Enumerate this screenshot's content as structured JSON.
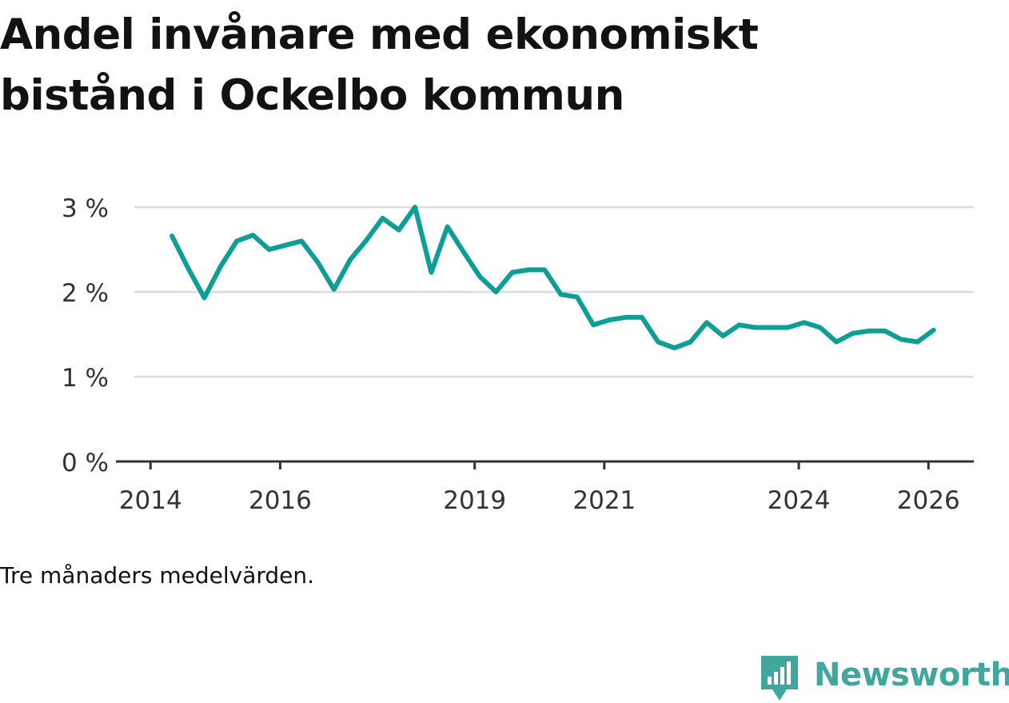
{
  "title": {
    "line1": "Andel invånare med ekonomiskt",
    "line2": "bistånd i Ockelbo kommun"
  },
  "footnote": "Tre månaders medelvärden.",
  "brand": {
    "name": "Newsworthy",
    "logo_icon": "bar-chart-bubble-icon",
    "color": "#3fa79d"
  },
  "colors": {
    "line": "#0d9f95",
    "grid": "#dddddd",
    "axis": "#333333",
    "text": "#121212"
  },
  "chart_data": {
    "type": "line",
    "title": "Andel invånare med ekonomiskt bistånd i Ockelbo kommun",
    "xlabel": "",
    "ylabel": "",
    "ylim": [
      0,
      3
    ],
    "xlim": [
      2013.75,
      2026.7
    ],
    "y_ticks": [
      {
        "value": 0,
        "label": "0 %"
      },
      {
        "value": 1,
        "label": "1 %"
      },
      {
        "value": 2,
        "label": "2 %"
      },
      {
        "value": 3,
        "label": "3 %"
      }
    ],
    "x_ticks": [
      {
        "value": 2014,
        "label": "2014"
      },
      {
        "value": 2016,
        "label": "2016"
      },
      {
        "value": 2019,
        "label": "2019"
      },
      {
        "value": 2021,
        "label": "2021"
      },
      {
        "value": 2024,
        "label": "2024"
      },
      {
        "value": 2026,
        "label": "2026"
      }
    ],
    "grid": true,
    "series": [
      {
        "name": "Andel invånare med ekonomiskt bistånd",
        "x": [
          2014.33,
          2014.58,
          2014.83,
          2015.08,
          2015.33,
          2015.58,
          2015.83,
          2016.08,
          2016.33,
          2016.58,
          2016.83,
          2017.08,
          2017.33,
          2017.58,
          2017.83,
          2018.08,
          2018.33,
          2018.58,
          2018.83,
          2019.08,
          2019.33,
          2019.58,
          2019.83,
          2020.08,
          2020.33,
          2020.58,
          2020.83,
          2021.08,
          2021.33,
          2021.58,
          2021.83,
          2022.08,
          2022.33,
          2022.58,
          2022.83,
          2023.08,
          2023.33,
          2023.58,
          2023.83,
          2024.08,
          2024.33,
          2024.58,
          2024.83,
          2025.08,
          2025.33,
          2025.58,
          2025.83,
          2026.08
        ],
        "values": [
          2.66,
          2.28,
          1.93,
          2.3,
          2.6,
          2.67,
          2.5,
          2.55,
          2.6,
          2.35,
          2.03,
          2.38,
          2.61,
          2.87,
          2.73,
          3.0,
          2.23,
          2.77,
          2.47,
          2.18,
          2.0,
          2.23,
          2.26,
          2.26,
          1.97,
          1.94,
          1.61,
          1.67,
          1.7,
          1.7,
          1.41,
          1.34,
          1.41,
          1.64,
          1.48,
          1.61,
          1.58,
          1.58,
          1.58,
          1.64,
          1.58,
          1.41,
          1.51,
          1.54,
          1.54,
          1.44,
          1.41,
          1.55
        ]
      }
    ]
  }
}
